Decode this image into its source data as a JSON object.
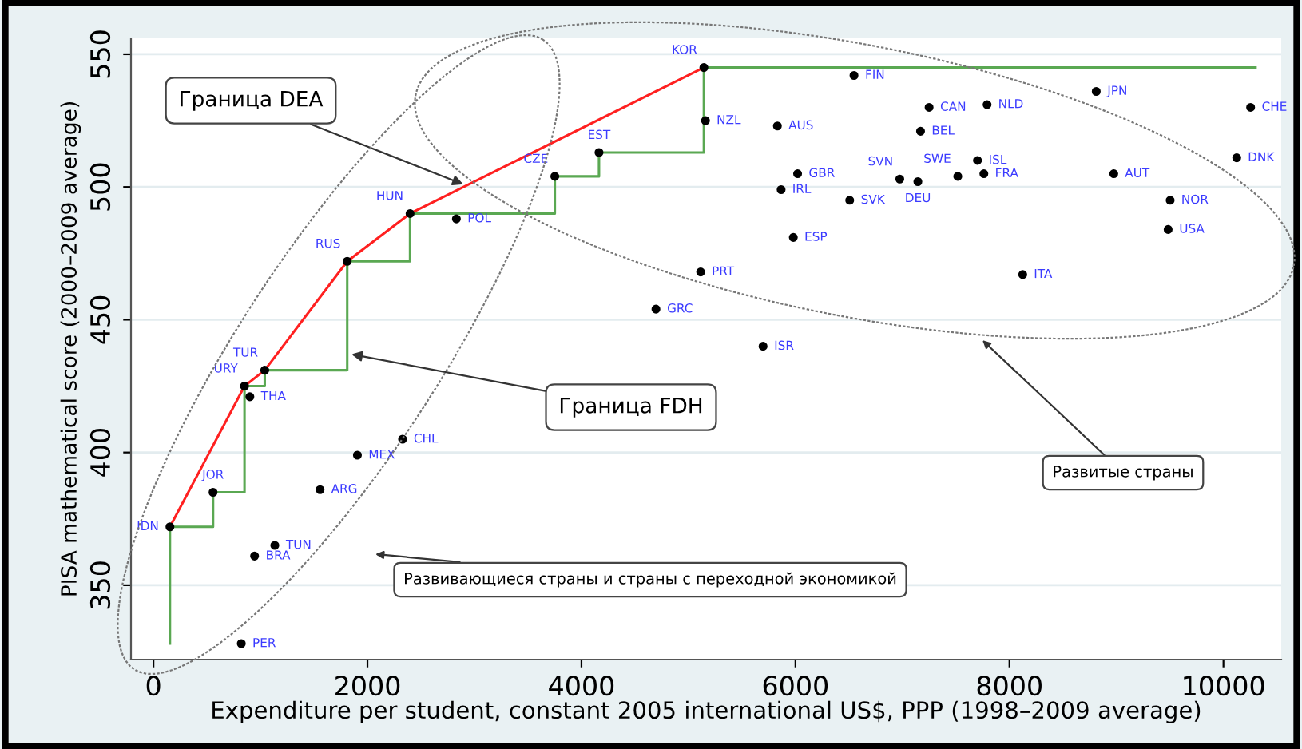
{
  "chart_data": {
    "type": "scatter",
    "xlabel": "Expenditure per student, constant 2005 international US$, PPP (1998–2009 average)",
    "ylabel": "PISA mathematical score (2000–2009 average)",
    "xlim": [
      -210,
      10540
    ],
    "ylim": [
      322,
      556
    ],
    "xticks": [
      0,
      2000,
      4000,
      6000,
      8000,
      10000
    ],
    "yticks": [
      350,
      400,
      450,
      500,
      550
    ],
    "grid": "y",
    "marker": "circle",
    "legend": false,
    "series": [
      {
        "type": "scatter",
        "color": "#000000",
        "x": [
          2398,
          2831,
          1811,
          3751,
          4164,
          1040,
          5144,
          6547,
          5159,
          5831,
          7249,
          7791,
          8811,
          10254,
          7169,
          10124,
          7701,
          6020,
          6975,
          7144,
          7517,
          7761,
          8975,
          5866,
          6507,
          9502,
          9483,
          5980,
          5114,
          8124,
          4696,
          5697,
          851,
          901,
          2328,
          1906,
          1557,
          557,
          154,
          1134,
          945,
          821
        ],
        "values": [
          490,
          488,
          472,
          504,
          513,
          431,
          545,
          542,
          525,
          523,
          530,
          531,
          536,
          530,
          521,
          511,
          510,
          505,
          503,
          502,
          504,
          505,
          505,
          499,
          495,
          495,
          484,
          481,
          468,
          467,
          454,
          440,
          425,
          421,
          405,
          399,
          386,
          385,
          372,
          365,
          361,
          328
        ]
      },
      {
        "type": "line",
        "color": "#ff2020",
        "marker": "none",
        "x": [
          154,
          851,
          1040,
          1811,
          2398,
          5144
        ],
        "values": [
          372,
          425,
          431,
          472,
          490,
          545
        ]
      },
      {
        "type": "line",
        "color": "#5aa852",
        "marker": "none",
        "x": [
          154,
          154,
          557,
          557,
          851,
          851,
          1040,
          1040,
          1811,
          1811,
          2398,
          2398,
          3751,
          3751,
          4164,
          4164,
          5144,
          5144,
          10300
        ],
        "values": [
          328,
          372,
          372,
          385,
          385,
          425,
          425,
          431,
          431,
          472,
          472,
          490,
          490,
          504,
          504,
          513,
          513,
          545,
          545
        ]
      }
    ],
    "annotations": [
      {
        "text": "Граница DEA",
        "x": 2896,
        "y": 501
      },
      {
        "text": "Граница FDH",
        "x": 1851,
        "y": 437
      },
      "Развитые страны",
      "Развивающиеся страны и страны с переходной экономикой",
      {
        "text": "HUN",
        "x": 2398,
        "y": 490
      },
      {
        "text": "POL",
        "x": 2831,
        "y": 488
      },
      {
        "text": "RUS",
        "x": 1811,
        "y": 472
      },
      {
        "text": "CZE",
        "x": 3751,
        "y": 504
      },
      {
        "text": "EST",
        "x": 4164,
        "y": 513
      },
      {
        "text": "TUR",
        "x": 1040,
        "y": 431
      },
      {
        "text": "KOR",
        "x": 5144,
        "y": 545
      },
      {
        "text": "FIN",
        "x": 6547,
        "y": 542
      },
      {
        "text": "NZL",
        "x": 5159,
        "y": 525
      },
      {
        "text": "AUS",
        "x": 5831,
        "y": 523
      },
      {
        "text": "CAN",
        "x": 7249,
        "y": 530
      },
      {
        "text": "NLD",
        "x": 7791,
        "y": 531
      },
      {
        "text": "JPN",
        "x": 8811,
        "y": 536
      },
      {
        "text": "CHE",
        "x": 10254,
        "y": 530
      },
      {
        "text": "BEL",
        "x": 7169,
        "y": 521
      },
      {
        "text": "DNK",
        "x": 10124,
        "y": 511
      },
      {
        "text": "ISL",
        "x": 7701,
        "y": 510
      },
      {
        "text": "GBR",
        "x": 6020,
        "y": 505
      },
      {
        "text": "SVN",
        "x": 6975,
        "y": 503
      },
      {
        "text": "DEU",
        "x": 7144,
        "y": 502
      },
      {
        "text": "SWE",
        "x": 7517,
        "y": 504
      },
      {
        "text": "FRA",
        "x": 7761,
        "y": 505
      },
      {
        "text": "AUT",
        "x": 8975,
        "y": 505
      },
      {
        "text": "IRL",
        "x": 5866,
        "y": 499
      },
      {
        "text": "SVK",
        "x": 6507,
        "y": 495
      },
      {
        "text": "NOR",
        "x": 9502,
        "y": 495
      },
      {
        "text": "USA",
        "x": 9483,
        "y": 484
      },
      {
        "text": "ESP",
        "x": 5980,
        "y": 481
      },
      {
        "text": "PRT",
        "x": 5114,
        "y": 468
      },
      {
        "text": "ITA",
        "x": 8124,
        "y": 467
      },
      {
        "text": "GRC",
        "x": 4696,
        "y": 454
      },
      {
        "text": "ISR",
        "x": 5697,
        "y": 440
      },
      {
        "text": "URY",
        "x": 851,
        "y": 425
      },
      {
        "text": "THA",
        "x": 901,
        "y": 421
      },
      {
        "text": "CHL",
        "x": 2328,
        "y": 405
      },
      {
        "text": "MEX",
        "x": 1906,
        "y": 399
      },
      {
        "text": "ARG",
        "x": 1557,
        "y": 386
      },
      {
        "text": "JOR",
        "x": 557,
        "y": 385
      },
      {
        "text": "IDN",
        "x": 154,
        "y": 372
      },
      {
        "text": "TUN",
        "x": 1134,
        "y": 365
      },
      {
        "text": "BRA",
        "x": 945,
        "y": 361
      },
      {
        "text": "PER",
        "x": 821,
        "y": 328
      }
    ]
  }
}
